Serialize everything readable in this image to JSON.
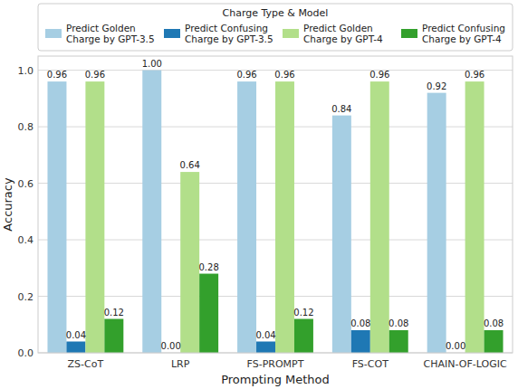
{
  "chart_data": {
    "type": "bar",
    "x_label": "Prompting Method",
    "y_label": "Accuracy",
    "legend_title": "Charge Type & Model",
    "categories": [
      "ZS-CoT",
      "LRP",
      "FS-PROMPT",
      "FS-COT",
      "CHAIN-OF-LOGIC"
    ],
    "series": [
      {
        "name": "Predict Golden Charge by GPT-3.5",
        "color": "#a6cee3",
        "values": [
          0.96,
          1.0,
          0.96,
          0.84,
          0.92
        ],
        "value_labels": [
          "0.96",
          "1.00",
          "0.96",
          "0.84",
          "0.92"
        ]
      },
      {
        "name": "Predict Confusing Charge by GPT-3.5",
        "color": "#1f78b4",
        "values": [
          0.04,
          0.0,
          0.04,
          0.08,
          0.0
        ],
        "value_labels": [
          "0.04",
          "0.00",
          "0.04",
          "0.08",
          "0.00"
        ]
      },
      {
        "name": "Predict Golden Charge by GPT-4",
        "color": "#b2df8a",
        "values": [
          0.96,
          0.64,
          0.96,
          0.96,
          0.96
        ],
        "value_labels": [
          "0.96",
          "0.64",
          "0.96",
          "0.96",
          "0.96"
        ]
      },
      {
        "name": "Predict Confusing Charge by GPT-4",
        "color": "#33a02c",
        "values": [
          0.12,
          0.28,
          0.12,
          0.08,
          0.08
        ],
        "value_labels": [
          "0.12",
          "0.28",
          "0.12",
          "0.08",
          "0.08"
        ]
      }
    ],
    "ylim": [
      0,
      1.05
    ],
    "yticks": [
      {
        "value": 0,
        "label": "0.0"
      },
      {
        "value": 0.2,
        "label": "0.2"
      },
      {
        "value": 0.4,
        "label": "0.4"
      },
      {
        "value": 0.6,
        "label": "0.6"
      },
      {
        "value": 0.8,
        "label": "0.8"
      },
      {
        "value": 1.0,
        "label": "1.0"
      }
    ],
    "grid": true,
    "data_labels": true,
    "legend": "top"
  }
}
